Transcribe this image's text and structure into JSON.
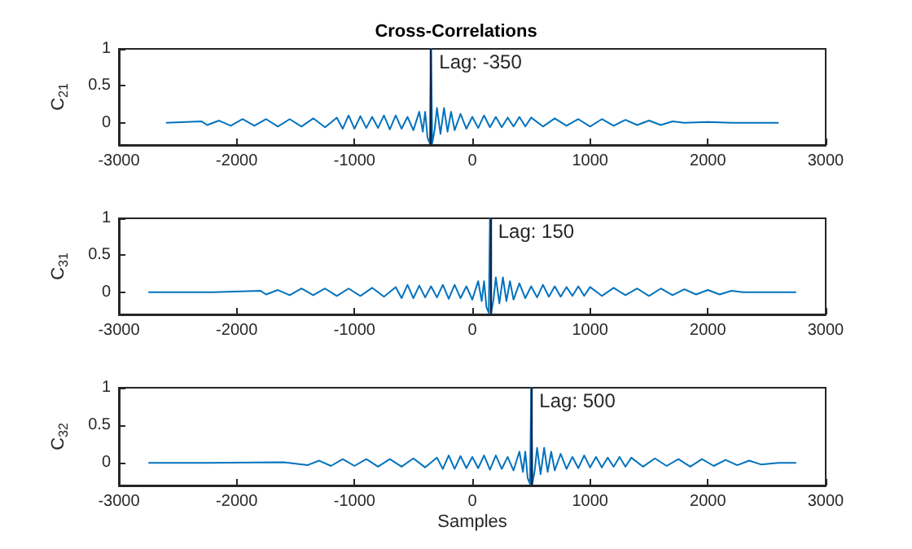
{
  "chart_data": [
    {
      "type": "line",
      "title": "Cross-Correlations",
      "ylabel": "C$_{21}$",
      "xlim": [
        -3000,
        3000
      ],
      "xticks": [
        -3000,
        -2000,
        -1000,
        0,
        1000,
        2000,
        3000
      ],
      "ylim": [
        -0.3,
        1
      ],
      "yticks": [
        0,
        0.5,
        1
      ],
      "grid": false,
      "ref_lines": [
        {
          "axis": "x",
          "value": -350,
          "label": "Lag: -350",
          "color": "#0b2447"
        }
      ],
      "series": [
        {
          "color": "#0072bd",
          "x": [
            -2600,
            -2300,
            -2250,
            -2150,
            -2050,
            -1950,
            -1850,
            -1750,
            -1650,
            -1550,
            -1450,
            -1350,
            -1250,
            -1150,
            -1100,
            -1050,
            -1000,
            -950,
            -900,
            -850,
            -800,
            -750,
            -700,
            -650,
            -600,
            -550,
            -500,
            -450,
            -420,
            -400,
            -380,
            -360,
            -350,
            -340,
            -320,
            -300,
            -270,
            -240,
            -210,
            -180,
            -150,
            -100,
            -50,
            0,
            50,
            100,
            150,
            200,
            250,
            300,
            350,
            400,
            450,
            500,
            600,
            700,
            800,
            900,
            1000,
            1100,
            1200,
            1300,
            1400,
            1500,
            1600,
            1700,
            1800,
            2000,
            2200,
            2600
          ],
          "values": [
            0,
            0.02,
            -0.03,
            0.03,
            -0.04,
            0.05,
            -0.04,
            0.05,
            -0.05,
            0.05,
            -0.05,
            0.06,
            -0.06,
            0.07,
            -0.08,
            0.1,
            -0.08,
            0.09,
            -0.07,
            0.08,
            -0.07,
            0.1,
            -0.09,
            0.1,
            -0.08,
            0.08,
            -0.1,
            0.15,
            -0.12,
            0.15,
            -0.2,
            -0.28,
            1,
            -0.28,
            -0.1,
            0.2,
            -0.15,
            0.2,
            -0.12,
            0.15,
            -0.1,
            0.12,
            -0.08,
            0.08,
            -0.07,
            0.1,
            -0.06,
            0.08,
            -0.06,
            0.07,
            -0.05,
            0.08,
            -0.05,
            0.07,
            -0.05,
            0.06,
            -0.04,
            0.05,
            -0.05,
            0.05,
            -0.04,
            0.04,
            -0.03,
            0.03,
            -0.03,
            0.02,
            0,
            0.01,
            0,
            0
          ]
        }
      ]
    },
    {
      "type": "line",
      "ylabel": "C$_{31}$",
      "xlim": [
        -3000,
        3000
      ],
      "xticks": [
        -3000,
        -2000,
        -1000,
        0,
        1000,
        2000,
        3000
      ],
      "ylim": [
        -0.3,
        1
      ],
      "yticks": [
        0,
        0.5,
        1
      ],
      "grid": false,
      "ref_lines": [
        {
          "axis": "x",
          "value": 150,
          "label": "Lag: 150",
          "color": "#0b2447"
        }
      ],
      "series": [
        {
          "color": "#0072bd",
          "x": [
            -2750,
            -2200,
            -1800,
            -1750,
            -1650,
            -1550,
            -1450,
            -1350,
            -1250,
            -1150,
            -1050,
            -950,
            -850,
            -750,
            -650,
            -600,
            -550,
            -500,
            -450,
            -400,
            -350,
            -300,
            -250,
            -200,
            -150,
            -100,
            -50,
            0,
            50,
            80,
            100,
            120,
            140,
            150,
            160,
            180,
            200,
            230,
            260,
            290,
            320,
            350,
            400,
            450,
            500,
            550,
            600,
            650,
            700,
            750,
            800,
            850,
            900,
            950,
            1000,
            1100,
            1200,
            1300,
            1400,
            1500,
            1600,
            1700,
            1800,
            1900,
            2000,
            2100,
            2200,
            2300,
            2500,
            2750
          ],
          "values": [
            0,
            0,
            0.02,
            -0.03,
            0.03,
            -0.04,
            0.05,
            -0.04,
            0.05,
            -0.05,
            0.05,
            -0.05,
            0.06,
            -0.06,
            0.07,
            -0.08,
            0.1,
            -0.08,
            0.09,
            -0.07,
            0.08,
            -0.07,
            0.1,
            -0.09,
            0.1,
            -0.08,
            0.08,
            -0.1,
            0.15,
            -0.12,
            0.15,
            -0.2,
            -0.28,
            1,
            -0.28,
            -0.1,
            0.2,
            -0.15,
            0.2,
            -0.12,
            0.15,
            -0.1,
            0.12,
            -0.08,
            0.08,
            -0.07,
            0.1,
            -0.06,
            0.08,
            -0.06,
            0.07,
            -0.05,
            0.08,
            -0.05,
            0.07,
            -0.05,
            0.06,
            -0.04,
            0.05,
            -0.05,
            0.05,
            -0.04,
            0.04,
            -0.03,
            0.03,
            -0.03,
            0.02,
            0,
            0,
            0
          ]
        }
      ]
    },
    {
      "type": "line",
      "ylabel": "C$_{32}$",
      "xlabel": "Samples",
      "xlim": [
        -3000,
        3000
      ],
      "xticks": [
        -3000,
        -2000,
        -1000,
        0,
        1000,
        2000,
        3000
      ],
      "ylim": [
        -0.3,
        1
      ],
      "yticks": [
        0,
        0.5,
        1
      ],
      "grid": false,
      "ref_lines": [
        {
          "axis": "x",
          "value": 500,
          "label": "Lag: 500",
          "color": "#0b2447"
        }
      ],
      "series": [
        {
          "color": "#0072bd",
          "x": [
            -2750,
            -2300,
            -1600,
            -1400,
            -1300,
            -1200,
            -1100,
            -1000,
            -900,
            -800,
            -700,
            -600,
            -500,
            -400,
            -300,
            -250,
            -200,
            -150,
            -100,
            -50,
            0,
            50,
            100,
            150,
            200,
            250,
            300,
            350,
            400,
            430,
            450,
            470,
            490,
            500,
            510,
            530,
            550,
            580,
            610,
            640,
            670,
            700,
            750,
            800,
            850,
            900,
            950,
            1000,
            1050,
            1100,
            1150,
            1200,
            1250,
            1300,
            1350,
            1450,
            1550,
            1650,
            1750,
            1850,
            1950,
            2050,
            2150,
            2250,
            2350,
            2450,
            2600,
            2750
          ],
          "values": [
            0,
            0,
            0.01,
            -0.03,
            0.03,
            -0.04,
            0.05,
            -0.04,
            0.05,
            -0.05,
            0.05,
            -0.05,
            0.06,
            -0.06,
            0.07,
            -0.08,
            0.1,
            -0.08,
            0.09,
            -0.07,
            0.08,
            -0.07,
            0.1,
            -0.09,
            0.1,
            -0.08,
            0.08,
            -0.1,
            0.15,
            -0.12,
            0.15,
            -0.2,
            -0.28,
            1,
            -0.28,
            -0.1,
            0.2,
            -0.15,
            0.2,
            -0.12,
            0.15,
            -0.1,
            0.12,
            -0.08,
            0.08,
            -0.07,
            0.1,
            -0.06,
            0.08,
            -0.06,
            0.07,
            -0.05,
            0.08,
            -0.05,
            0.07,
            -0.05,
            0.06,
            -0.04,
            0.05,
            -0.05,
            0.05,
            -0.04,
            0.04,
            -0.03,
            0.03,
            -0.02,
            0,
            0
          ]
        }
      ]
    }
  ]
}
